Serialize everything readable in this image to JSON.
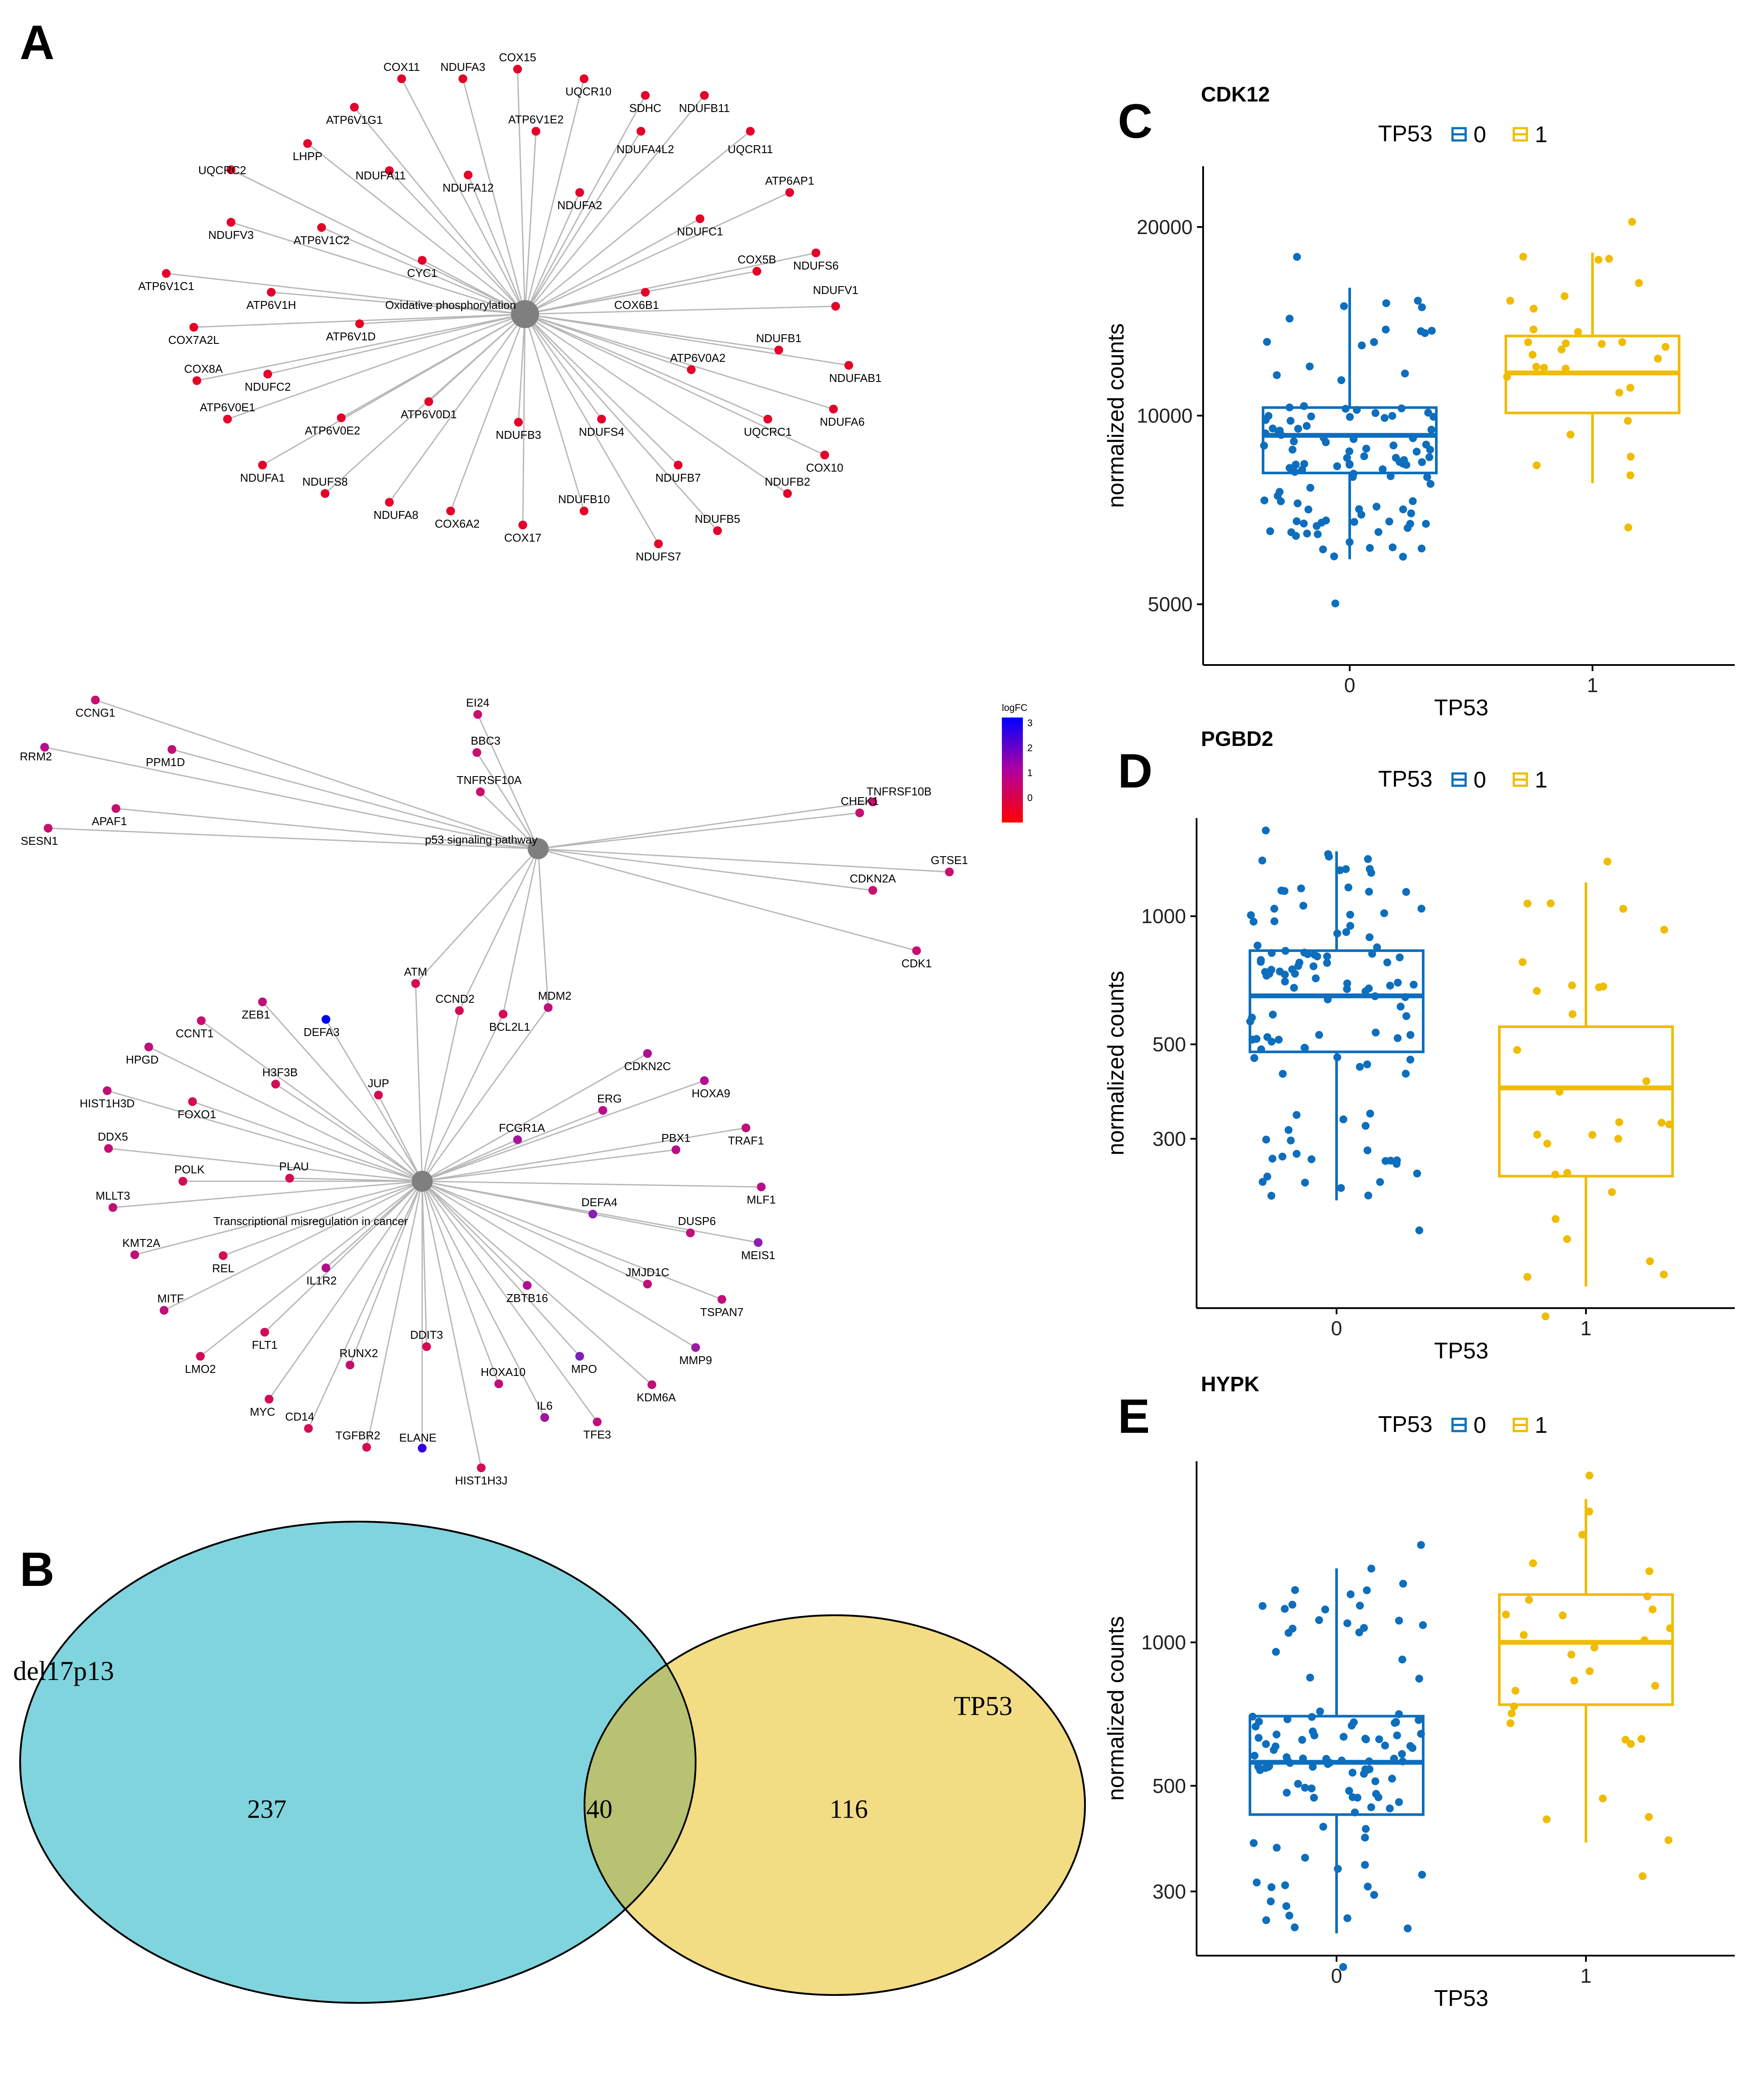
{
  "panel_labels": {
    "A": "A",
    "B": "B",
    "C": "C",
    "D": "D",
    "E": "E"
  },
  "network": {
    "colorbar": {
      "title": "logFC",
      "ticks": [
        "3",
        "2",
        "1",
        "0"
      ],
      "colors": [
        "#0000ff",
        "#e5002a",
        "#ff0000"
      ]
    },
    "hubs": [
      {
        "id": "oxphos",
        "label": "Oxidative phosphorylation",
        "genes": [
          "COX11",
          "NDUFA3",
          "COX15",
          "UQCR10",
          "SDHC",
          "NDUFB11",
          "ATP6V1G1",
          "ATP6V1E2",
          "NDUFA4L2",
          "UQCR11",
          "LHPP",
          "NDUFA11",
          "NDUFA12",
          "UQCRC2",
          "NDUFA2",
          "ATP6AP1",
          "NDUFC1",
          "NDUFV3",
          "ATP6V1C2",
          "NDUFS6",
          "CYC1",
          "COX5B",
          "ATP6V1C1",
          "NDUFV1",
          "ATP6V1H",
          "COX6B1",
          "COX7A2L",
          "ATP6V1D",
          "NDUFB1",
          "COX8A",
          "NDUFC2",
          "ATP6V0A2",
          "NDUFAB1",
          "ATP6V0E1",
          "ATP6V0E2",
          "ATP6V0D1",
          "NDUFA6",
          "NDUFB3",
          "NDUFS4",
          "UQCRC1",
          "NDUFA1",
          "NDUFB7",
          "COX10",
          "NDUFS8",
          "NDUFB2",
          "NDUFA8",
          "COX6A2",
          "NDUFB5",
          "COX17",
          "NDUFB10",
          "NDUFS7"
        ]
      },
      {
        "id": "p53",
        "label": "p53 signaling pathway",
        "genes": [
          "CCNG1",
          "EI24",
          "RRM2",
          "PPM1D",
          "BBC3",
          "TNFRSF10A",
          "TNFRSF10B",
          "CHEK1",
          "APAF1",
          "SESN1",
          "GTSE1",
          "CDKN2A",
          "CDK1",
          "ATM",
          "CCND2",
          "BCL2L1",
          "MDM2"
        ]
      },
      {
        "id": "cancer",
        "label": "Transcriptional misregulation in cancer",
        "genes": [
          "ZEB1",
          "DEFA3",
          "CCNT1",
          "HPGD",
          "H3F3B",
          "HIST1H3D",
          "FOXO1",
          "JUP",
          "CDKN2C",
          "HOXA9",
          "ERG",
          "FCGR1A",
          "TRAF1",
          "PBX1",
          "DDX5",
          "POLK",
          "PLAU",
          "MLF1",
          "MLLT3",
          "DEFA4",
          "DUSP6",
          "KMT2A",
          "REL",
          "MEIS1",
          "IL1R2",
          "ZBTB16",
          "JMJD1C",
          "TSPAN7",
          "MITF",
          "FLT1",
          "MMP9",
          "LMO2",
          "RUNX2",
          "DDIT3",
          "MPO",
          "KDM6A",
          "HOXA10",
          "MYC",
          "CD14",
          "IL6",
          "TFE3",
          "TGFBR2",
          "ELANE",
          "HIST1H3J",
          "ATM",
          "CCND2",
          "BCL2L1",
          "MDM2"
        ]
      }
    ]
  },
  "venn": {
    "sets": [
      {
        "name": "del17p13",
        "only": "237",
        "color": "#7fd4de"
      },
      {
        "name": "TP53",
        "only": "116",
        "color": "#f2dc84"
      }
    ],
    "overlap": "40",
    "overlap_color": "#b7c273"
  },
  "box_common": {
    "legend_title": "TP53",
    "legend_items": [
      "0",
      "1"
    ],
    "group_colors": [
      "#0d6ebd",
      "#efbc00"
    ],
    "ylabel": "normalized counts",
    "xlabel": "TP53",
    "categories": [
      "0",
      "1"
    ]
  },
  "chart_data": [
    {
      "type": "box",
      "title": "CDK12",
      "xlabel": "TP53",
      "ylabel": "normalized counts",
      "categories": [
        "0",
        "1"
      ],
      "scale": "log",
      "ylim": [
        4000,
        25000
      ],
      "yticks": [
        "5000",
        "10000",
        "20000"
      ],
      "series": [
        {
          "name": "0",
          "q1": 8100,
          "median": 9300,
          "q3": 10300,
          "whisker_low": 5900,
          "whisker_high": 16000
        },
        {
          "name": "1",
          "q1": 10100,
          "median": 11700,
          "q3": 13400,
          "whisker_low": 7800,
          "whisker_high": 18200
        }
      ]
    },
    {
      "type": "box",
      "title": "PGBD2",
      "xlabel": "TP53",
      "ylabel": "normalized counts",
      "categories": [
        "0",
        "1"
      ],
      "scale": "log",
      "ylim": [
        120,
        1700
      ],
      "yticks": [
        "300",
        "500",
        "1000"
      ],
      "series": [
        {
          "name": "0",
          "q1": 480,
          "median": 650,
          "q3": 830,
          "whisker_low": 215,
          "whisker_high": 1420
        },
        {
          "name": "1",
          "q1": 245,
          "median": 395,
          "q3": 550,
          "whisker_low": 135,
          "whisker_high": 1200
        }
      ]
    },
    {
      "type": "box",
      "title": "HYPK",
      "xlabel": "TP53",
      "ylabel": "normalized counts",
      "categories": [
        "0",
        "1"
      ],
      "scale": "log",
      "ylim": [
        220,
        2400
      ],
      "yticks": [
        "300",
        "500",
        "1000"
      ],
      "series": [
        {
          "name": "0",
          "q1": 435,
          "median": 560,
          "q3": 700,
          "whisker_low": 245,
          "whisker_high": 1430
        },
        {
          "name": "1",
          "q1": 740,
          "median": 1000,
          "q3": 1260,
          "whisker_low": 380,
          "whisker_high": 2000
        }
      ]
    }
  ]
}
